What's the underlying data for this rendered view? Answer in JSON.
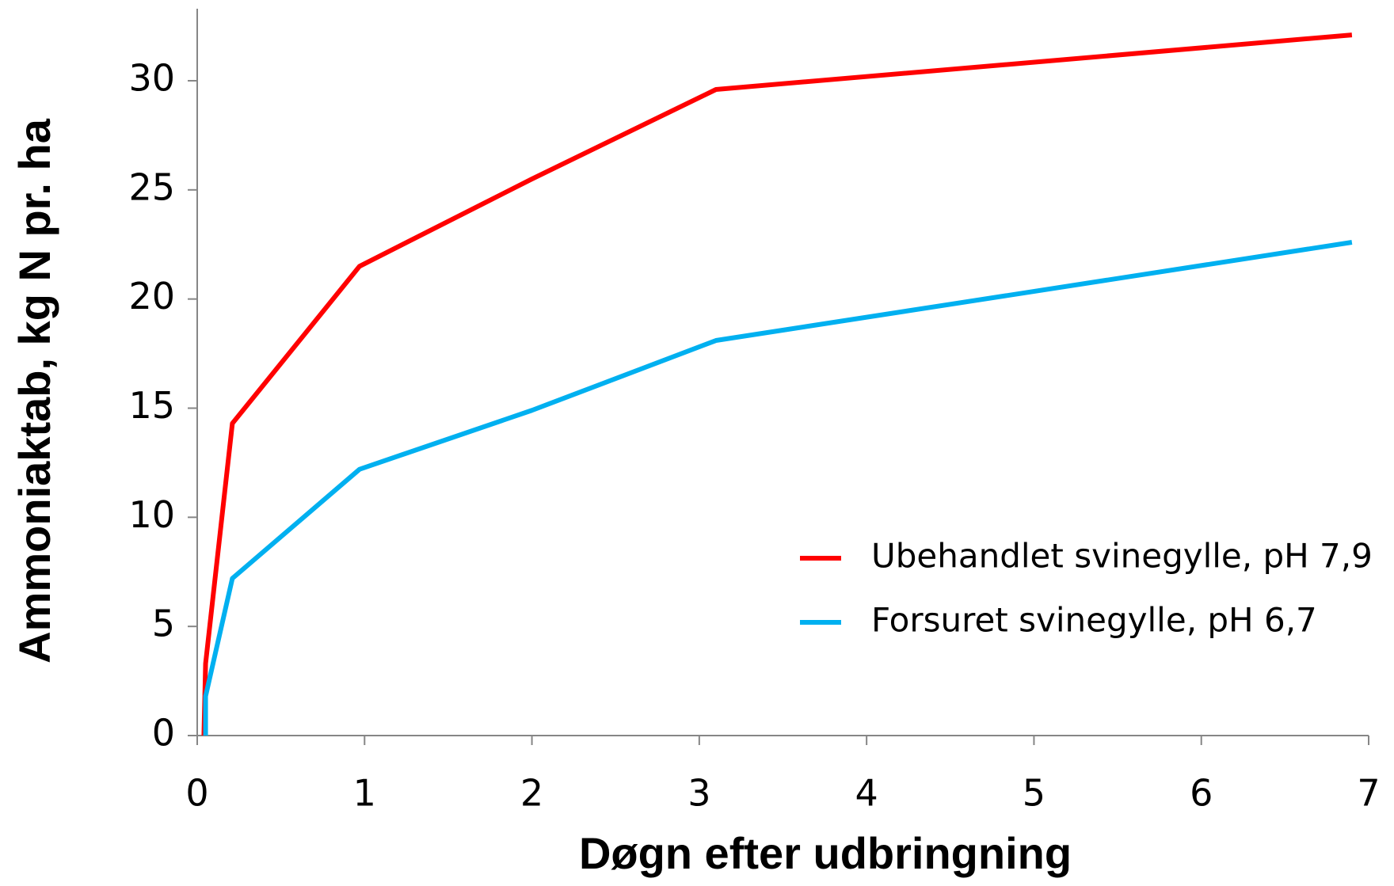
{
  "chart_data": {
    "type": "line",
    "xlabel": "Døgn efter udbringning",
    "ylabel": "Ammoniaktab, kg N pr. ha",
    "xlim": [
      0,
      7
    ],
    "xticks": [
      0,
      1,
      2,
      3,
      4,
      5,
      6,
      7
    ],
    "ylim": [
      0,
      33.3
    ],
    "yticks": [
      0,
      5,
      10,
      15,
      20,
      25,
      30
    ],
    "legend": "lower right",
    "series": [
      {
        "name": "Ubehandlet svinegylle, pH 7,9",
        "color": "#ff0000",
        "x": [
          0.04,
          0.05,
          0.21,
          0.97,
          2,
          3.1,
          6.9
        ],
        "values": [
          0,
          3.3,
          14.3,
          21.5,
          25.5,
          29.6,
          32.1
        ]
      },
      {
        "name": "Forsuret svinegylle, pH 6,7",
        "color": "#00b0f0",
        "x": [
          0.05,
          0.05,
          0.21,
          0.97,
          2,
          3.1,
          6.9
        ],
        "values": [
          0,
          1.8,
          7.2,
          12.2,
          14.9,
          18.1,
          22.6
        ]
      }
    ]
  }
}
